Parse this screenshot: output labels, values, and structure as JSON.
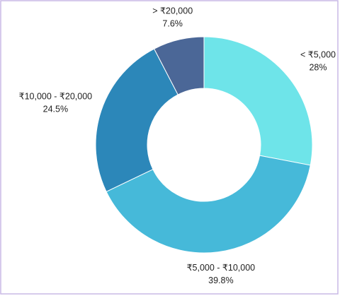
{
  "chart_data": {
    "type": "donut",
    "categories": [
      "< ₹5,000",
      "₹5,000 - ₹10,000",
      "₹10,000 - ₹20,000",
      "> ₹20,000"
    ],
    "values": [
      28,
      39.8,
      24.5,
      7.6
    ],
    "value_labels": [
      "28%",
      "39.8%",
      "24.5%",
      "7.6%"
    ],
    "colors": [
      "#6ee4e9",
      "#46b9d9",
      "#2c87b9",
      "#4b6797"
    ]
  }
}
